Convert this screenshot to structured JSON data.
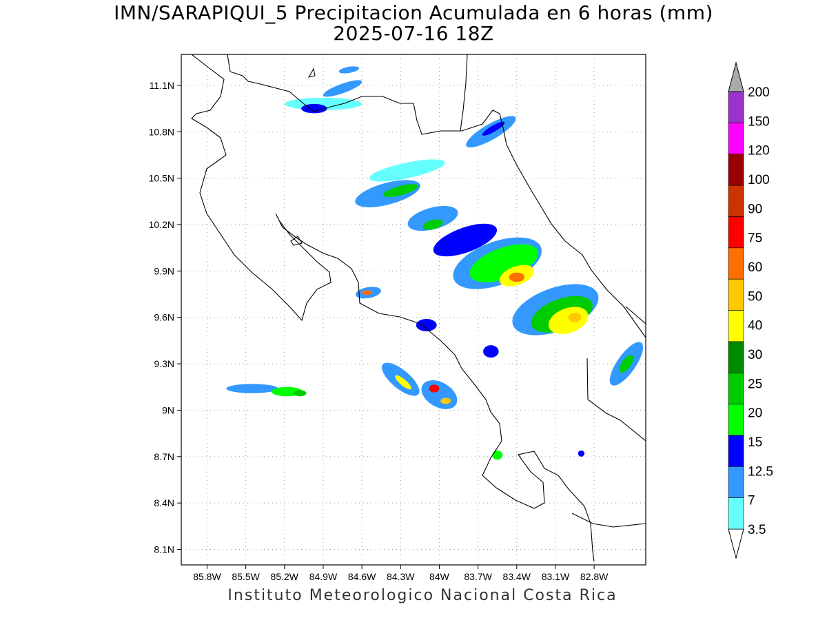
{
  "header": {
    "title": "IMN/SARAPIQUI_5 Precipitacion Acumulada en 6 horas (mm)",
    "valid_time": "2025-07-16 18Z"
  },
  "footer": {
    "credit": "Instituto Meteorologico Nacional Costa Rica"
  },
  "map": {
    "lon_range": [
      -86.0,
      -82.4
    ],
    "lat_range": [
      8.0,
      11.3
    ],
    "lon_ticks": [
      {
        "value": -85.8,
        "label": "85.8W"
      },
      {
        "value": -85.5,
        "label": "85.5W"
      },
      {
        "value": -85.2,
        "label": "85.2W"
      },
      {
        "value": -84.9,
        "label": "84.9W"
      },
      {
        "value": -84.6,
        "label": "84.6W"
      },
      {
        "value": -84.3,
        "label": "84.3W"
      },
      {
        "value": -84.0,
        "label": "84W"
      },
      {
        "value": -83.7,
        "label": "83.7W"
      },
      {
        "value": -83.4,
        "label": "83.4W"
      },
      {
        "value": -83.1,
        "label": "83.1W"
      },
      {
        "value": -82.8,
        "label": "82.8W"
      }
    ],
    "lat_ticks": [
      {
        "value": 11.1,
        "label": "11.1N"
      },
      {
        "value": 10.8,
        "label": "10.8N"
      },
      {
        "value": 10.5,
        "label": "10.5N"
      },
      {
        "value": 10.2,
        "label": "10.2N"
      },
      {
        "value": 9.9,
        "label": "9.9N"
      },
      {
        "value": 9.6,
        "label": "9.6N"
      },
      {
        "value": 9.3,
        "label": "9.3N"
      },
      {
        "value": 9.0,
        "label": "9N"
      },
      {
        "value": 8.7,
        "label": "8.7N"
      },
      {
        "value": 8.4,
        "label": "8.4N"
      },
      {
        "value": 8.1,
        "label": "8.1N"
      }
    ],
    "grid": true
  },
  "colorbar": {
    "levels": [
      {
        "label": "3.5",
        "color": "#66ffff"
      },
      {
        "label": "7",
        "color": "#3399ff"
      },
      {
        "label": "12.5",
        "color": "#0000ff"
      },
      {
        "label": "15",
        "color": "#00ff00"
      },
      {
        "label": "20",
        "color": "#00cc00"
      },
      {
        "label": "25",
        "color": "#008a00"
      },
      {
        "label": "30",
        "color": "#ffff00"
      },
      {
        "label": "40",
        "color": "#ffc800"
      },
      {
        "label": "50",
        "color": "#ff6e00"
      },
      {
        "label": "60",
        "color": "#ff0000"
      },
      {
        "label": "75",
        "color": "#cc3300"
      },
      {
        "label": "90",
        "color": "#990000"
      },
      {
        "label": "100",
        "color": "#ff00ff"
      },
      {
        "label": "120",
        "color": "#9933cc"
      },
      {
        "label": "150",
        "color": "#f5f5f5"
      },
      {
        "label": "200",
        "color": "#aaaaaa"
      }
    ]
  },
  "precip_cells": [
    {
      "lon": -84.9,
      "lat": 10.98,
      "dlon": 0.3,
      "dlat": 0.04,
      "rot": 0,
      "level": 0
    },
    {
      "lon": -84.97,
      "lat": 10.95,
      "dlon": 0.1,
      "dlat": 0.03,
      "rot": 0,
      "level": 2
    },
    {
      "lon": -84.75,
      "lat": 11.08,
      "dlon": 0.16,
      "dlat": 0.03,
      "rot": -20,
      "level": 1
    },
    {
      "lon": -84.7,
      "lat": 11.2,
      "dlon": 0.08,
      "dlat": 0.02,
      "rot": -10,
      "level": 1
    },
    {
      "lon": -83.6,
      "lat": 10.8,
      "dlon": 0.22,
      "dlat": 0.05,
      "rot": -30,
      "level": 1
    },
    {
      "lon": -83.58,
      "lat": 10.82,
      "dlon": 0.1,
      "dlat": 0.02,
      "rot": -30,
      "level": 2
    },
    {
      "lon": -84.25,
      "lat": 10.55,
      "dlon": 0.3,
      "dlat": 0.05,
      "rot": -12,
      "level": 0
    },
    {
      "lon": -84.4,
      "lat": 10.4,
      "dlon": 0.26,
      "dlat": 0.07,
      "rot": -15,
      "level": 1
    },
    {
      "lon": -84.3,
      "lat": 10.42,
      "dlon": 0.14,
      "dlat": 0.03,
      "rot": -15,
      "level": 4
    },
    {
      "lon": -84.05,
      "lat": 10.24,
      "dlon": 0.2,
      "dlat": 0.07,
      "rot": -15,
      "level": 1
    },
    {
      "lon": -84.05,
      "lat": 10.2,
      "dlon": 0.08,
      "dlat": 0.03,
      "rot": -15,
      "level": 4
    },
    {
      "lon": -83.8,
      "lat": 10.1,
      "dlon": 0.26,
      "dlat": 0.08,
      "rot": -20,
      "level": 2
    },
    {
      "lon": -83.55,
      "lat": 9.95,
      "dlon": 0.36,
      "dlat": 0.14,
      "rot": -20,
      "level": 1
    },
    {
      "lon": -83.5,
      "lat": 9.95,
      "dlon": 0.28,
      "dlat": 0.1,
      "rot": -20,
      "level": 3
    },
    {
      "lon": -83.4,
      "lat": 9.87,
      "dlon": 0.14,
      "dlat": 0.06,
      "rot": -20,
      "level": 6
    },
    {
      "lon": -83.4,
      "lat": 9.86,
      "dlon": 0.06,
      "dlat": 0.03,
      "rot": 0,
      "level": 8
    },
    {
      "lon": -83.1,
      "lat": 9.65,
      "dlon": 0.35,
      "dlat": 0.14,
      "rot": -20,
      "level": 1
    },
    {
      "lon": -83.05,
      "lat": 9.62,
      "dlon": 0.25,
      "dlat": 0.1,
      "rot": -20,
      "level": 4
    },
    {
      "lon": -83.0,
      "lat": 9.58,
      "dlon": 0.16,
      "dlat": 0.08,
      "rot": -20,
      "level": 6
    },
    {
      "lon": -82.95,
      "lat": 9.6,
      "dlon": 0.05,
      "dlat": 0.03,
      "rot": 0,
      "level": 7
    },
    {
      "lon": -82.55,
      "lat": 9.3,
      "dlon": 0.2,
      "dlat": 0.06,
      "rot": -55,
      "level": 1
    },
    {
      "lon": -82.55,
      "lat": 9.3,
      "dlon": 0.08,
      "dlat": 0.03,
      "rot": -55,
      "level": 4
    },
    {
      "lon": -84.55,
      "lat": 9.76,
      "dlon": 0.1,
      "dlat": 0.035,
      "rot": -10,
      "level": 1
    },
    {
      "lon": -84.56,
      "lat": 9.76,
      "dlon": 0.04,
      "dlat": 0.015,
      "rot": 0,
      "level": 8
    },
    {
      "lon": -84.1,
      "lat": 9.55,
      "dlon": 0.08,
      "dlat": 0.04,
      "rot": 0,
      "level": 2
    },
    {
      "lon": -83.6,
      "lat": 9.38,
      "dlon": 0.06,
      "dlat": 0.04,
      "rot": 0,
      "level": 2
    },
    {
      "lon": -84.3,
      "lat": 9.2,
      "dlon": 0.18,
      "dlat": 0.06,
      "rot": 40,
      "level": 1
    },
    {
      "lon": -84.28,
      "lat": 9.18,
      "dlon": 0.08,
      "dlat": 0.02,
      "rot": 40,
      "level": 6
    },
    {
      "lon": -84.0,
      "lat": 9.1,
      "dlon": 0.15,
      "dlat": 0.08,
      "rot": 30,
      "level": 1
    },
    {
      "lon": -84.04,
      "lat": 9.14,
      "dlon": 0.04,
      "dlat": 0.025,
      "rot": 0,
      "level": 9
    },
    {
      "lon": -83.95,
      "lat": 9.06,
      "dlon": 0.04,
      "dlat": 0.02,
      "rot": 0,
      "level": 7
    },
    {
      "lon": -85.45,
      "lat": 9.14,
      "dlon": 0.2,
      "dlat": 0.03,
      "rot": 0,
      "level": 1
    },
    {
      "lon": -85.18,
      "lat": 9.12,
      "dlon": 0.12,
      "dlat": 0.03,
      "rot": 0,
      "level": 3
    },
    {
      "lon": -85.08,
      "lat": 9.11,
      "dlon": 0.05,
      "dlat": 0.02,
      "rot": 0,
      "level": 4
    },
    {
      "lon": -83.55,
      "lat": 8.71,
      "dlon": 0.04,
      "dlat": 0.03,
      "rot": 0,
      "level": 3
    },
    {
      "lon": -82.9,
      "lat": 8.72,
      "dlon": 0.025,
      "dlat": 0.02,
      "rot": 0,
      "level": 2
    }
  ]
}
